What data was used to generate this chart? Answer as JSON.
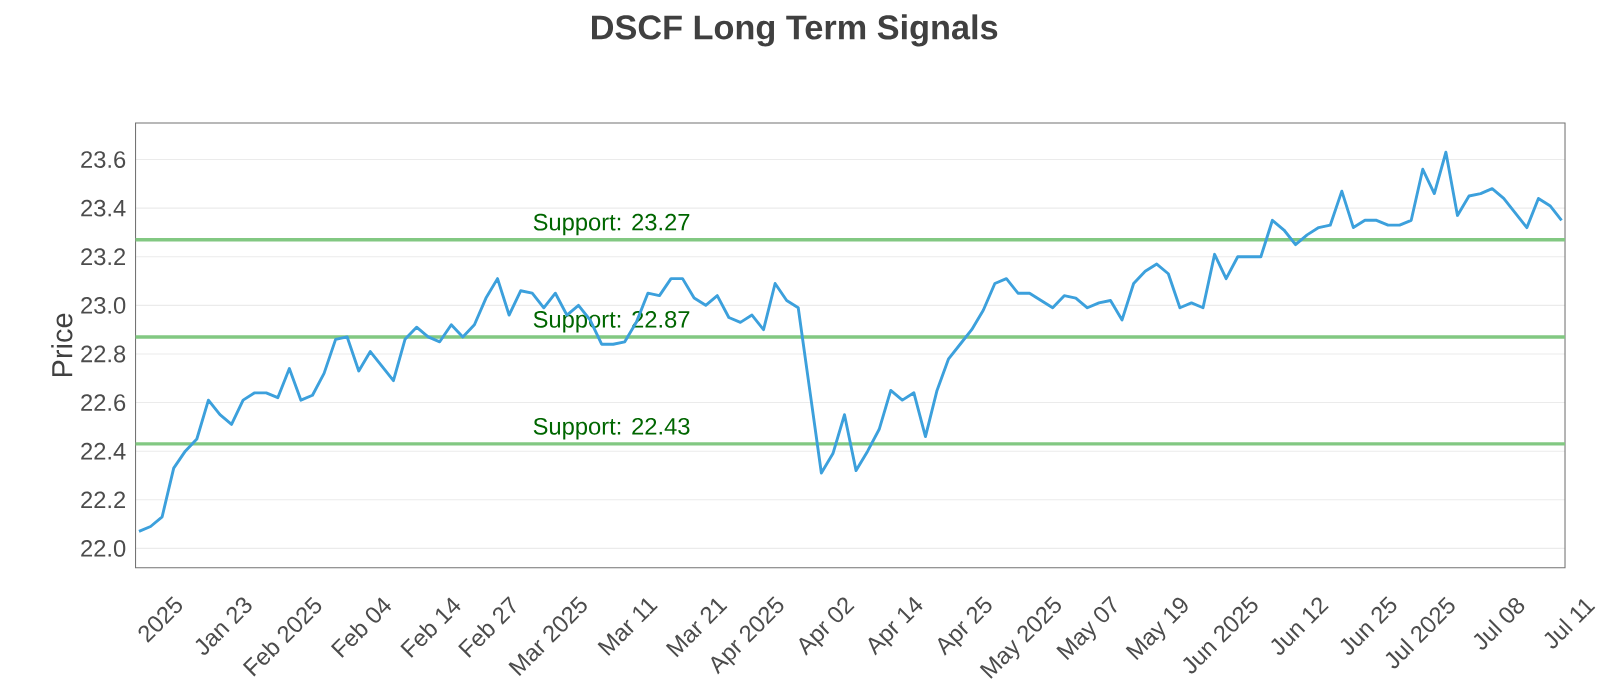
{
  "chart_data": {
    "type": "line",
    "title": "DSCF Long Term Signals",
    "ylabel": "Price",
    "categories": [
      null,
      "2025",
      null,
      null,
      null,
      null,
      null,
      "Jan 23",
      null,
      null,
      null,
      null,
      null,
      "Feb 2025",
      null,
      null,
      null,
      null,
      null,
      "Feb 04",
      null,
      null,
      null,
      null,
      null,
      "Feb 14",
      null,
      null,
      null,
      null,
      "Feb 27",
      null,
      null,
      null,
      null,
      null,
      "Mar 2025",
      null,
      null,
      null,
      null,
      null,
      "Mar 11",
      null,
      null,
      null,
      null,
      null,
      "Mar 21",
      null,
      null,
      null,
      null,
      "Apr 2025",
      null,
      null,
      null,
      null,
      null,
      "Apr 02",
      null,
      null,
      null,
      null,
      null,
      "Apr 14",
      null,
      null,
      null,
      null,
      null,
      "Apr 25",
      null,
      null,
      null,
      null,
      null,
      "May 2025",
      null,
      null,
      null,
      null,
      "May 07",
      null,
      null,
      null,
      null,
      null,
      "May 19",
      null,
      null,
      null,
      null,
      null,
      "Jun 2025",
      null,
      null,
      null,
      null,
      null,
      "Jun 12",
      null,
      null,
      null,
      null,
      null,
      "Jun 25",
      null,
      null,
      null,
      null,
      "Jul 2025",
      null,
      null,
      null,
      null,
      null,
      "Jul 08",
      null,
      null,
      null,
      null,
      null,
      "Jul 11"
    ],
    "series": [
      {
        "color": "#3ca0dc",
        "values": [
          22.07,
          22.09,
          22.13,
          22.33,
          22.4,
          22.45,
          22.61,
          22.55,
          22.51,
          22.61,
          22.64,
          22.64,
          22.62,
          22.74,
          22.61,
          22.63,
          22.72,
          22.86,
          22.87,
          22.73,
          22.81,
          22.75,
          22.69,
          22.86,
          22.91,
          22.87,
          22.85,
          22.92,
          22.87,
          22.92,
          23.03,
          23.11,
          22.96,
          23.06,
          23.05,
          22.99,
          23.05,
          22.96,
          23.0,
          22.94,
          22.84,
          22.84,
          22.85,
          22.93,
          23.05,
          23.04,
          23.11,
          23.11,
          23.03,
          23.0,
          23.04,
          22.95,
          22.93,
          22.96,
          22.9,
          23.09,
          23.02,
          22.99,
          22.65,
          22.31,
          22.39,
          22.55,
          22.32,
          22.4,
          22.49,
          22.65,
          22.61,
          22.64,
          22.46,
          22.65,
          22.78,
          22.84,
          22.9,
          22.98,
          23.09,
          23.11,
          23.05,
          23.05,
          23.02,
          22.99,
          23.04,
          23.03,
          22.99,
          23.01,
          23.02,
          22.94,
          23.09,
          23.14,
          23.17,
          23.13,
          22.99,
          23.01,
          22.99,
          23.21,
          23.11,
          23.2,
          23.2,
          23.2,
          23.35,
          23.31,
          23.25,
          23.29,
          23.32,
          23.33,
          23.47,
          23.32,
          23.35,
          23.35,
          23.33,
          23.33,
          23.35,
          23.56,
          23.46,
          23.63,
          23.37,
          23.45,
          23.46,
          23.48,
          23.44,
          23.38,
          23.32,
          23.44,
          23.41,
          23.35
        ]
      }
    ],
    "ylim": [
      21.92,
      23.75
    ],
    "yticks": [
      {
        "value": 22.0,
        "label": "22.0"
      },
      {
        "value": 22.2,
        "label": "22.2"
      },
      {
        "value": 22.4,
        "label": "22.4"
      },
      {
        "value": 22.6,
        "label": "22.6"
      },
      {
        "value": 22.8,
        "label": "22.8"
      },
      {
        "value": 23.0,
        "label": "23.0"
      },
      {
        "value": 23.2,
        "label": "23.2"
      },
      {
        "value": 23.4,
        "label": "23.4"
      },
      {
        "value": 23.6,
        "label": "23.6"
      }
    ],
    "ref_lines": [
      {
        "axis": "y",
        "value": 23.27,
        "label": "Support: 23.27",
        "color": "#82c882"
      },
      {
        "axis": "y",
        "value": 22.87,
        "label": "Support: 22.87",
        "color": "#82c882"
      },
      {
        "axis": "y",
        "value": 22.43,
        "label": "Support: 22.43",
        "color": "#82c882"
      }
    ],
    "grid": "y",
    "legend": false,
    "marker": "none",
    "line_style": "solid"
  }
}
